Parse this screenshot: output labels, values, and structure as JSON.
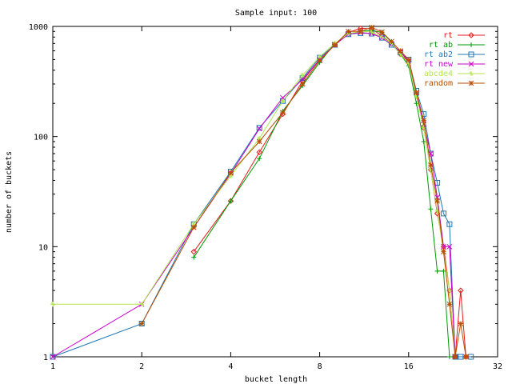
{
  "chart_data": {
    "type": "line",
    "title": "Sample input: 100",
    "xlabel": "bucket length",
    "ylabel": "number of buckets",
    "x_scale": "log2",
    "y_scale": "log10",
    "xlim": [
      1,
      32
    ],
    "ylim": [
      1,
      1000
    ],
    "x_ticks": [
      "1",
      "2",
      "4",
      "8",
      "16",
      "32"
    ],
    "x_tick_values": [
      1,
      2,
      4,
      8,
      16,
      32
    ],
    "y_ticks": [
      "1",
      "10",
      "100",
      "1000"
    ],
    "y_tick_values": [
      1,
      10,
      100,
      1000
    ],
    "grid": false,
    "legend_position": "top-right",
    "series": [
      {
        "name": "rt",
        "color": "#e41a1c",
        "marker": "diamond",
        "x": [
          3,
          4,
          5,
          6,
          7,
          8,
          9,
          10,
          11,
          12,
          13,
          14,
          15,
          16,
          17,
          18,
          19,
          20,
          21,
          22,
          23,
          24,
          25
        ],
        "y": [
          9,
          26,
          72,
          160,
          320,
          500,
          680,
          880,
          960,
          950,
          820,
          700,
          560,
          480,
          240,
          120,
          50,
          20,
          10,
          4,
          1,
          4,
          1
        ]
      },
      {
        "name": "rt ab",
        "color": "#009900",
        "marker": "plus",
        "x": [
          3,
          4,
          5,
          6,
          7,
          8,
          9,
          10,
          11,
          12,
          13,
          14,
          15,
          16,
          17,
          18,
          19,
          20,
          21,
          22
        ],
        "y": [
          8,
          26,
          63,
          170,
          290,
          470,
          700,
          850,
          900,
          920,
          880,
          720,
          560,
          440,
          200,
          90,
          22,
          6,
          6,
          1
        ]
      },
      {
        "name": "rt ab2",
        "color": "#1f78b4",
        "marker": "square",
        "x": [
          1,
          2,
          3,
          4,
          5,
          6,
          7,
          8,
          9,
          10,
          11,
          12,
          13,
          14,
          15,
          16,
          17,
          18,
          19,
          20,
          21,
          22,
          23,
          24,
          26
        ],
        "y": [
          1,
          2,
          16,
          48,
          120,
          210,
          340,
          520,
          680,
          850,
          870,
          860,
          790,
          680,
          580,
          500,
          260,
          160,
          70,
          38,
          20,
          16,
          1,
          1,
          1
        ]
      },
      {
        "name": "rt new",
        "color": "#cc00cc",
        "marker": "x",
        "x": [
          1,
          2,
          3,
          4,
          5,
          6,
          7,
          8,
          9,
          10,
          11,
          12,
          13,
          14,
          15,
          16,
          17,
          18,
          19,
          20,
          21,
          22,
          23
        ],
        "y": [
          1,
          3,
          15,
          46,
          118,
          225,
          330,
          500,
          680,
          850,
          880,
          860,
          790,
          690,
          590,
          480,
          250,
          130,
          70,
          28,
          10,
          10,
          1
        ]
      },
      {
        "name": "abcde4",
        "color": "#b3e64d",
        "marker": "cross",
        "x": [
          1,
          2,
          3,
          4,
          5,
          6,
          7,
          8,
          9,
          10,
          11,
          12,
          13,
          14,
          15,
          16,
          17,
          18,
          19,
          20,
          21,
          22,
          23
        ],
        "y": [
          3,
          3,
          16,
          44,
          96,
          210,
          360,
          530,
          700,
          860,
          900,
          890,
          800,
          700,
          560,
          460,
          230,
          120,
          50,
          21,
          9,
          4,
          1
        ]
      },
      {
        "name": "random",
        "color": "#b84e00",
        "marker": "star",
        "x": [
          2,
          3,
          4,
          5,
          6,
          7,
          8,
          9,
          10,
          11,
          12,
          13,
          14,
          15,
          16,
          17,
          18,
          19,
          20,
          21,
          22,
          23,
          24,
          25
        ],
        "y": [
          2,
          15,
          47,
          90,
          165,
          300,
          490,
          680,
          900,
          900,
          980,
          890,
          730,
          600,
          500,
          250,
          140,
          55,
          26,
          9,
          3,
          1,
          2,
          1
        ]
      }
    ]
  }
}
